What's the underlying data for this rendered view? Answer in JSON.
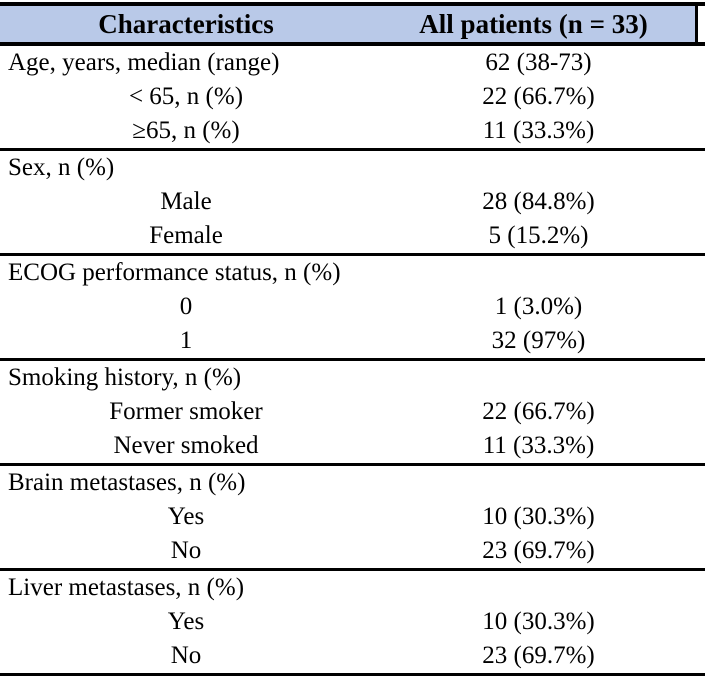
{
  "colors": {
    "header_bg": "#b9c9e8",
    "rule": "#000000",
    "text": "#000000",
    "page_bg": "#ffffff"
  },
  "header": {
    "characteristics": "Characteristics",
    "all_patients": "All patients (n = 33)"
  },
  "sections": [
    {
      "name": "age",
      "rows": [
        {
          "type": "category",
          "label": "Age, years, median (range)",
          "value": "62 (38-73)"
        },
        {
          "type": "sub",
          "label": "< 65, n (%)",
          "value": "22 (66.7%)"
        },
        {
          "type": "sub",
          "label": "≥65, n (%)",
          "value": "11 (33.3%)"
        }
      ]
    },
    {
      "name": "sex",
      "rows": [
        {
          "type": "category",
          "label": "Sex, n (%)",
          "value": ""
        },
        {
          "type": "sub",
          "label": "Male",
          "value": "28 (84.8%)"
        },
        {
          "type": "sub",
          "label": "Female",
          "value": "5 (15.2%)"
        }
      ]
    },
    {
      "name": "ecog",
      "rows": [
        {
          "type": "category",
          "label": "ECOG performance status, n (%)",
          "value": ""
        },
        {
          "type": "sub",
          "label": "0",
          "value": "1 (3.0%)"
        },
        {
          "type": "sub",
          "label": "1",
          "value": "32 (97%)"
        }
      ]
    },
    {
      "name": "smoking",
      "rows": [
        {
          "type": "category",
          "label": "Smoking history, n (%)",
          "value": ""
        },
        {
          "type": "sub",
          "label": "Former smoker",
          "value": "22 (66.7%)"
        },
        {
          "type": "sub",
          "label": "Never smoked",
          "value": "11 (33.3%)"
        }
      ]
    },
    {
      "name": "brain-metastases",
      "rows": [
        {
          "type": "category",
          "label": "Brain metastases, n (%)",
          "value": ""
        },
        {
          "type": "sub",
          "label": "Yes",
          "value": "10 (30.3%)"
        },
        {
          "type": "sub",
          "label": "No",
          "value": "23 (69.7%)"
        }
      ]
    },
    {
      "name": "liver-metastases",
      "rows": [
        {
          "type": "category",
          "label": "Liver metastases, n (%)",
          "value": ""
        },
        {
          "type": "sub",
          "label": "Yes",
          "value": "10 (30.3%)"
        },
        {
          "type": "sub",
          "label": "No",
          "value": "23 (69.7%)"
        }
      ]
    }
  ]
}
